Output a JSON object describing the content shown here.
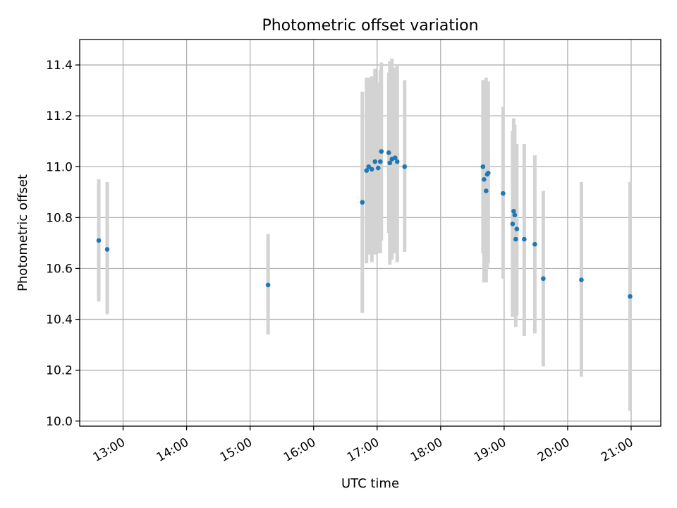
{
  "chart_data": {
    "type": "scatter",
    "title": "Photometric offset variation",
    "xlabel": "UTC time",
    "ylabel": "Photometric offset",
    "x_tick_labels": [
      "13:00",
      "14:00",
      "15:00",
      "16:00",
      "17:00",
      "18:00",
      "19:00",
      "20:00",
      "21:00"
    ],
    "y_tick_labels": [
      "10.0",
      "10.2",
      "10.4",
      "10.6",
      "10.8",
      "11.0",
      "11.2",
      "11.4"
    ],
    "xlim": [
      "12:19",
      "21:28"
    ],
    "ylim": [
      9.98,
      11.5
    ],
    "grid": true,
    "colors": {
      "point": "#1f77b4",
      "errorbar": "#d3d3d3",
      "grid": "#b0b0b0"
    },
    "points": [
      {
        "x": "12:37",
        "y": 10.71,
        "ylow": 10.47,
        "yhigh": 10.95
      },
      {
        "x": "12:45",
        "y": 10.675,
        "ylow": 10.42,
        "yhigh": 10.94
      },
      {
        "x": "15:17",
        "y": 10.535,
        "ylow": 10.34,
        "yhigh": 10.735
      },
      {
        "x": "16:46",
        "y": 10.86,
        "ylow": 10.425,
        "yhigh": 11.295
      },
      {
        "x": "16:50",
        "y": 10.985,
        "ylow": 10.62,
        "yhigh": 11.35
      },
      {
        "x": "16:52",
        "y": 11.0,
        "ylow": 10.655,
        "yhigh": 11.35
      },
      {
        "x": "16:55",
        "y": 10.99,
        "ylow": 10.625,
        "yhigh": 11.355
      },
      {
        "x": "16:58",
        "y": 11.02,
        "ylow": 10.655,
        "yhigh": 11.385
      },
      {
        "x": "17:01",
        "y": 10.995,
        "ylow": 10.66,
        "yhigh": 11.33
      },
      {
        "x": "17:03",
        "y": 11.02,
        "ylow": 10.66,
        "yhigh": 11.38
      },
      {
        "x": "17:04",
        "y": 11.06,
        "ylow": 10.71,
        "yhigh": 11.41
      },
      {
        "x": "17:11",
        "y": 11.055,
        "ylow": 10.74,
        "yhigh": 11.37
      },
      {
        "x": "17:12",
        "y": 11.015,
        "ylow": 10.615,
        "yhigh": 11.415
      },
      {
        "x": "17:14",
        "y": 11.03,
        "ylow": 10.635,
        "yhigh": 11.425
      },
      {
        "x": "17:17",
        "y": 11.035,
        "ylow": 10.66,
        "yhigh": 11.39
      },
      {
        "x": "17:19",
        "y": 11.02,
        "ylow": 10.625,
        "yhigh": 11.4
      },
      {
        "x": "17:26",
        "y": 11.0,
        "ylow": 10.665,
        "yhigh": 11.34
      },
      {
        "x": "18:40",
        "y": 11.0,
        "ylow": 10.66,
        "yhigh": 11.34
      },
      {
        "x": "18:41",
        "y": 10.95,
        "ylow": 10.545,
        "yhigh": 11.34
      },
      {
        "x": "18:43",
        "y": 10.905,
        "ylow": 10.545,
        "yhigh": 11.35
      },
      {
        "x": "18:44",
        "y": 10.97,
        "ylow": 10.6,
        "yhigh": 11.335
      },
      {
        "x": "18:45",
        "y": 10.975,
        "ylow": 10.62,
        "yhigh": 11.335
      },
      {
        "x": "18:59",
        "y": 10.895,
        "ylow": 10.56,
        "yhigh": 11.235
      },
      {
        "x": "19:08",
        "y": 10.775,
        "ylow": 10.41,
        "yhigh": 11.14
      },
      {
        "x": "19:09",
        "y": 10.825,
        "ylow": 10.45,
        "yhigh": 11.19
      },
      {
        "x": "19:10",
        "y": 10.81,
        "ylow": 10.45,
        "yhigh": 11.165
      },
      {
        "x": "19:11",
        "y": 10.715,
        "ylow": 10.37,
        "yhigh": 11.05
      },
      {
        "x": "19:12",
        "y": 10.755,
        "ylow": 10.415,
        "yhigh": 11.09
      },
      {
        "x": "19:19",
        "y": 10.715,
        "ylow": 10.335,
        "yhigh": 11.09
      },
      {
        "x": "19:29",
        "y": 10.695,
        "ylow": 10.345,
        "yhigh": 11.045
      },
      {
        "x": "19:37",
        "y": 10.56,
        "ylow": 10.215,
        "yhigh": 10.905
      },
      {
        "x": "20:13",
        "y": 10.555,
        "ylow": 10.175,
        "yhigh": 10.94
      },
      {
        "x": "20:59",
        "y": 10.49,
        "ylow": 10.04,
        "yhigh": 10.94
      }
    ]
  }
}
